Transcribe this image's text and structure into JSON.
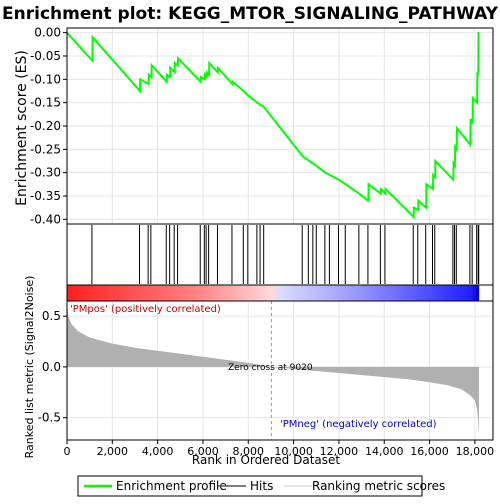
{
  "chart_data": {
    "type": "line",
    "title": "Enrichment plot: KEGG_MTOR_SIGNALING_PATHWAY",
    "xlabel": "Rank in Ordered Dataset",
    "ylabel_top": "Enrichment score (ES)",
    "ylabel_bottom": "Ranked list metric (Signal2Noise)",
    "xlim": [
      0,
      18800
    ],
    "ylim_top": [
      -0.41,
      0.01
    ],
    "ylim_bottom": [
      -0.72,
      0.65
    ],
    "x_ticks": [
      0,
      2000,
      4000,
      6000,
      8000,
      10000,
      12000,
      14000,
      16000,
      18000
    ],
    "x_tick_labels": [
      "0",
      "2,000",
      "4,000",
      "6,000",
      "8,000",
      "10,000",
      "12,000",
      "14,000",
      "16,000",
      "18,000"
    ],
    "y_ticks_top": [
      0.0,
      -0.05,
      -0.1,
      -0.15,
      -0.2,
      -0.25,
      -0.3,
      -0.35,
      -0.4
    ],
    "y_tick_labels_top": [
      "0.00",
      "-0.05",
      "-0.10",
      "-0.15",
      "-0.20",
      "-0.25",
      "-0.30",
      "-0.35",
      "-0.40"
    ],
    "y_ticks_bottom": [
      0.5,
      0.0,
      -0.5
    ],
    "y_tick_labels_bottom": [
      "0.5",
      "0.0",
      "-0.5"
    ],
    "grid": true,
    "legend_position": "bottom",
    "legend": [
      {
        "label": "Enrichment profile",
        "color": "#00ff00"
      },
      {
        "label": "Hits",
        "color": "#555555"
      },
      {
        "label": "Ranking metric scores",
        "color": "#cccccc"
      }
    ],
    "annotations": {
      "pos_label": "'PMpos' (positively correlated)",
      "neg_label": "'PMneg' (negatively correlated)",
      "zero_cross": "Zero cross at 9020"
    },
    "zero_cross_rank": 9020,
    "colors": {
      "profile": "#00ff00",
      "pos": "#ff0000",
      "neg": "#0000ff",
      "metric_fill": "#b0b0b0"
    },
    "series": [
      {
        "name": "Enrichment profile",
        "points": [
          [
            0,
            0.0
          ],
          [
            1120,
            -0.06
          ],
          [
            1130,
            -0.01
          ],
          [
            3220,
            -0.125
          ],
          [
            3230,
            -0.1
          ],
          [
            3600,
            -0.11
          ],
          [
            3610,
            -0.09
          ],
          [
            3730,
            -0.095
          ],
          [
            3740,
            -0.07
          ],
          [
            4400,
            -0.105
          ],
          [
            4410,
            -0.09
          ],
          [
            4550,
            -0.095
          ],
          [
            4560,
            -0.075
          ],
          [
            4750,
            -0.085
          ],
          [
            4760,
            -0.065
          ],
          [
            4890,
            -0.07
          ],
          [
            4900,
            -0.055
          ],
          [
            5900,
            -0.105
          ],
          [
            5910,
            -0.095
          ],
          [
            6080,
            -0.1
          ],
          [
            6090,
            -0.09
          ],
          [
            6160,
            -0.095
          ],
          [
            6170,
            -0.085
          ],
          [
            6270,
            -0.09
          ],
          [
            6280,
            -0.065
          ],
          [
            6650,
            -0.085
          ],
          [
            6660,
            -0.075
          ],
          [
            7300,
            -0.11
          ],
          [
            7310,
            -0.105
          ],
          [
            7800,
            -0.125
          ],
          [
            8000,
            -0.135
          ],
          [
            8400,
            -0.15
          ],
          [
            8700,
            -0.16
          ],
          [
            10400,
            -0.265
          ],
          [
            10700,
            -0.275
          ],
          [
            11000,
            -0.285
          ],
          [
            11400,
            -0.3
          ],
          [
            11600,
            -0.305
          ],
          [
            12000,
            -0.315
          ],
          [
            12300,
            -0.325
          ],
          [
            12900,
            -0.345
          ],
          [
            13300,
            -0.36
          ],
          [
            13310,
            -0.325
          ],
          [
            13850,
            -0.345
          ],
          [
            13860,
            -0.335
          ],
          [
            14050,
            -0.345
          ],
          [
            14060,
            -0.335
          ],
          [
            15300,
            -0.395
          ],
          [
            15310,
            -0.375
          ],
          [
            15500,
            -0.38
          ],
          [
            15510,
            -0.36
          ],
          [
            15850,
            -0.375
          ],
          [
            15860,
            -0.325
          ],
          [
            16150,
            -0.335
          ],
          [
            16160,
            -0.305
          ],
          [
            16250,
            -0.31
          ],
          [
            16260,
            -0.275
          ],
          [
            17050,
            -0.315
          ],
          [
            17060,
            -0.28
          ],
          [
            17120,
            -0.285
          ],
          [
            17130,
            -0.245
          ],
          [
            17200,
            -0.25
          ],
          [
            17210,
            -0.205
          ],
          [
            17800,
            -0.24
          ],
          [
            17810,
            -0.185
          ],
          [
            17900,
            -0.195
          ],
          [
            17910,
            -0.14
          ],
          [
            18100,
            -0.15
          ],
          [
            18110,
            -0.085
          ],
          [
            18150,
            -0.09
          ],
          [
            18160,
            0.0
          ],
          [
            18180,
            0.0
          ]
        ]
      }
    ],
    "hits": [
      1100,
      3200,
      3580,
      3700,
      4380,
      4530,
      4730,
      4880,
      5880,
      6060,
      6140,
      6250,
      6640,
      7280,
      7780,
      7980,
      8380,
      8520,
      8680,
      10380,
      10650,
      10850,
      11000,
      11380,
      11580,
      11980,
      12280,
      12880,
      13280,
      13830,
      14030,
      15280,
      15480,
      15830,
      16130,
      16230,
      17030,
      17100,
      17180,
      17780,
      17880,
      18080,
      18150,
      18170
    ],
    "metric_curve": [
      [
        0,
        0.62
      ],
      [
        60,
        0.5
      ],
      [
        200,
        0.42
      ],
      [
        500,
        0.35
      ],
      [
        1000,
        0.29
      ],
      [
        2000,
        0.23
      ],
      [
        3000,
        0.19
      ],
      [
        4000,
        0.16
      ],
      [
        5000,
        0.13
      ],
      [
        6000,
        0.1
      ],
      [
        7000,
        0.07
      ],
      [
        8000,
        0.04
      ],
      [
        9020,
        0.0
      ],
      [
        10000,
        -0.02
      ],
      [
        11000,
        -0.04
      ],
      [
        12000,
        -0.06
      ],
      [
        13000,
        -0.08
      ],
      [
        14000,
        -0.1
      ],
      [
        15000,
        -0.12
      ],
      [
        16000,
        -0.15
      ],
      [
        16800,
        -0.18
      ],
      [
        17400,
        -0.22
      ],
      [
        17800,
        -0.28
      ],
      [
        18000,
        -0.33
      ],
      [
        18100,
        -0.42
      ],
      [
        18150,
        -0.55
      ],
      [
        18180,
        -0.66
      ]
    ]
  }
}
